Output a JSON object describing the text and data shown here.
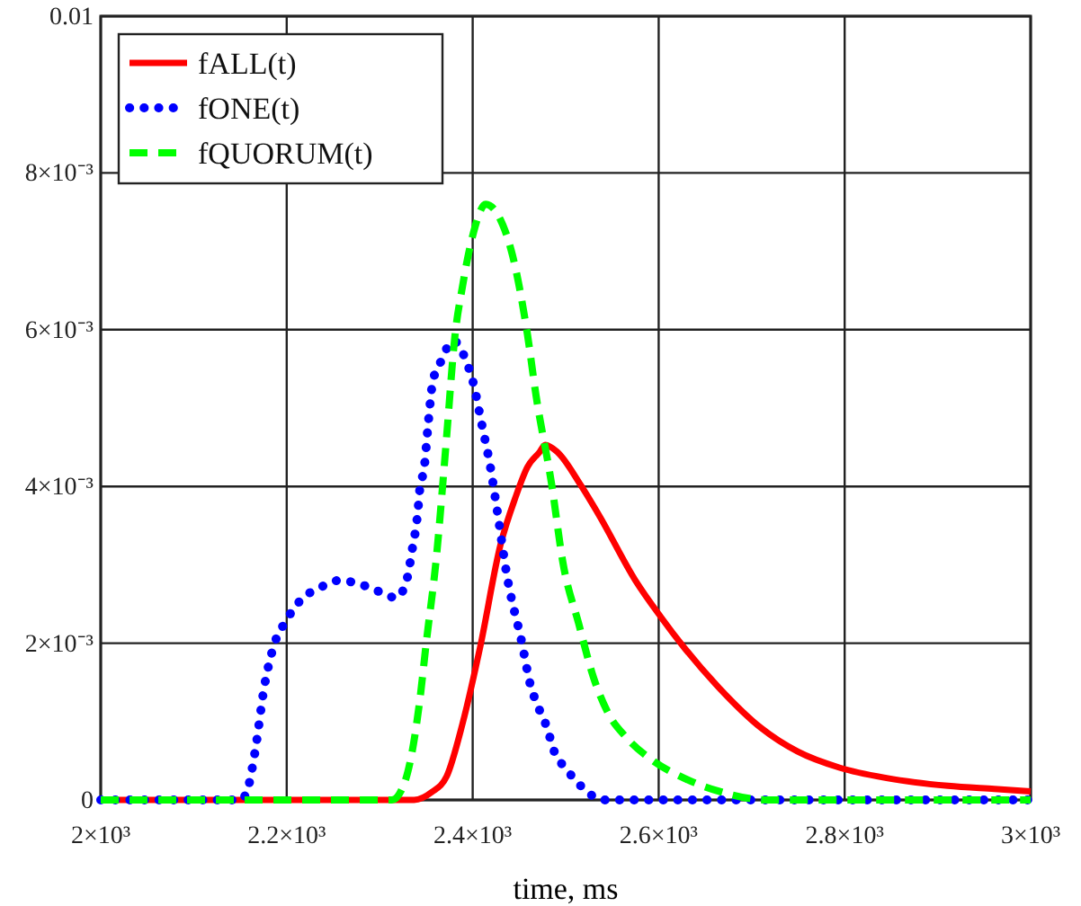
{
  "chart_data": {
    "type": "line",
    "xlabel": "time, ms",
    "legend": "top left",
    "grid": true,
    "marker": "none",
    "xlim": [
      2000,
      3000
    ],
    "ylim": [
      0,
      0.01
    ],
    "xticks": [
      {
        "value": 2000,
        "label": "2×10³"
      },
      {
        "value": 2200,
        "label": "2.2×10³"
      },
      {
        "value": 2400,
        "label": "2.4×10³"
      },
      {
        "value": 2600,
        "label": "2.6×10³"
      },
      {
        "value": 2800,
        "label": "2.8×10³"
      },
      {
        "value": 3000,
        "label": "3×10³"
      }
    ],
    "yticks": [
      0,
      {
        "value": 0.002,
        "label": "2×10⁻³"
      },
      {
        "value": 0.004,
        "label": "4×10⁻³"
      },
      {
        "value": 0.006,
        "label": "6×10⁻³"
      },
      {
        "value": 0.008,
        "label": "8×10⁻³"
      },
      0.01
    ],
    "series": [
      {
        "name": "fALL(t)",
        "color": "#ff0000",
        "line_style": "solid",
        "x": [
          2000,
          2337,
          2356,
          2372,
          2389,
          2408,
          2430,
          2446,
          2459,
          2472,
          2478,
          2491,
          2516,
          2536,
          2575,
          2602,
          2627,
          2665,
          2710,
          2749,
          2795,
          2845,
          2911,
          2961,
          3000
        ],
        "values": [
          0,
          0,
          0.0001,
          0.0003,
          0.00097,
          0.00195,
          0.00326,
          0.00386,
          0.00425,
          0.00444,
          0.00453,
          0.00444,
          0.00402,
          0.00363,
          0.0028,
          0.00234,
          0.00195,
          0.00143,
          0.00092,
          0.00062,
          0.00041,
          0.00028,
          0.00018,
          0.00014,
          0.00011
        ]
      },
      {
        "name": "fONE(t)",
        "color": "#0000ff",
        "line_style": "dotted",
        "x": [
          2000,
          2150,
          2157,
          2166,
          2176,
          2187,
          2199,
          2215,
          2236,
          2256,
          2277,
          2297,
          2318,
          2330,
          2334,
          2341,
          2343,
          2348,
          2352,
          2357,
          2366,
          2379,
          2393,
          2400,
          2410,
          2419,
          2426,
          2437,
          2453,
          2462,
          2470,
          2480,
          2487,
          2501,
          2518,
          2540,
          3000
        ],
        "values": [
          0,
          0,
          0.0001,
          0.00062,
          0.00145,
          0.002,
          0.00228,
          0.00255,
          0.00271,
          0.0028,
          0.00276,
          0.00267,
          0.00258,
          0.00285,
          0.00313,
          0.00368,
          0.00395,
          0.00425,
          0.00478,
          0.00533,
          0.0056,
          0.00586,
          0.0056,
          0.00535,
          0.00478,
          0.00425,
          0.00372,
          0.00285,
          0.002,
          0.00147,
          0.0012,
          0.00092,
          0.00064,
          0.00039,
          0.00016,
          0,
          0
        ]
      },
      {
        "name": "fQUORUM(t)",
        "color": "#00ff00",
        "line_style": "dashed",
        "x": [
          2000,
          2313,
          2327,
          2343,
          2350,
          2361,
          2369,
          2372,
          2381,
          2389,
          2400,
          2414,
          2430,
          2443,
          2459,
          2468,
          2485,
          2497,
          2514,
          2530,
          2546,
          2565,
          2594,
          2627,
          2665,
          2717,
          3000
        ],
        "values": [
          0,
          0,
          0.00023,
          0.00126,
          0.002,
          0.0031,
          0.0042,
          0.00464,
          0.00593,
          0.00655,
          0.0072,
          0.0076,
          0.0074,
          0.00694,
          0.00593,
          0.00517,
          0.00402,
          0.00303,
          0.00225,
          0.00156,
          0.0011,
          0.0008,
          0.0005,
          0.00028,
          0.00011,
          0,
          0
        ]
      }
    ]
  }
}
